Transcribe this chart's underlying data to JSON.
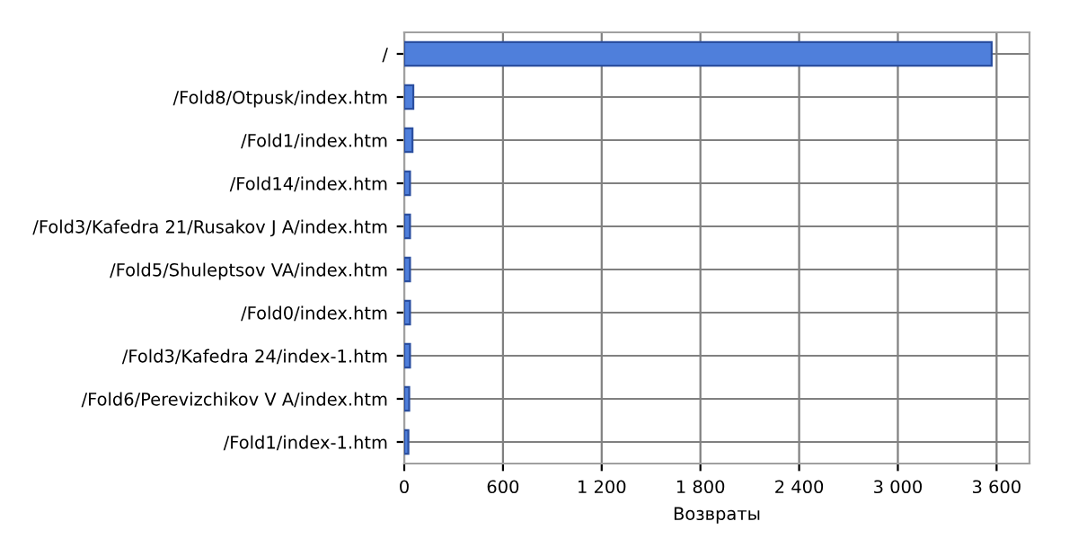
{
  "chart_data": {
    "type": "bar",
    "orientation": "horizontal",
    "xlabel": "Возвраты",
    "categories": [
      "/",
      "/Fold8/Otpusk/index.htm",
      "/Fold1/index.htm",
      "/Fold14/index.htm",
      "/Fold3/Kafedra 21/Rusakov J A/index.htm",
      "/Fold5/Shuleptsov VA/index.htm",
      "/Fold0/index.htm",
      "/Fold3/Kafedra 24/index-1.htm",
      "/Fold6/Perevizchikov V A/index.htm",
      "/Fold1/index-1.htm"
    ],
    "values": [
      3570,
      55,
      50,
      35,
      35,
      35,
      35,
      35,
      30,
      25
    ],
    "color": "#4f7fdb",
    "xlim": [
      0,
      3800
    ],
    "xticks": [
      0,
      600,
      {
        "value": 1200,
        "label": "1 200"
      },
      {
        "value": 1800,
        "label": "1 800"
      },
      {
        "value": 2400,
        "label": "2 400"
      },
      {
        "value": 3000,
        "label": "3 000"
      },
      {
        "value": 3600,
        "label": "3 600"
      }
    ],
    "grid": true
  }
}
